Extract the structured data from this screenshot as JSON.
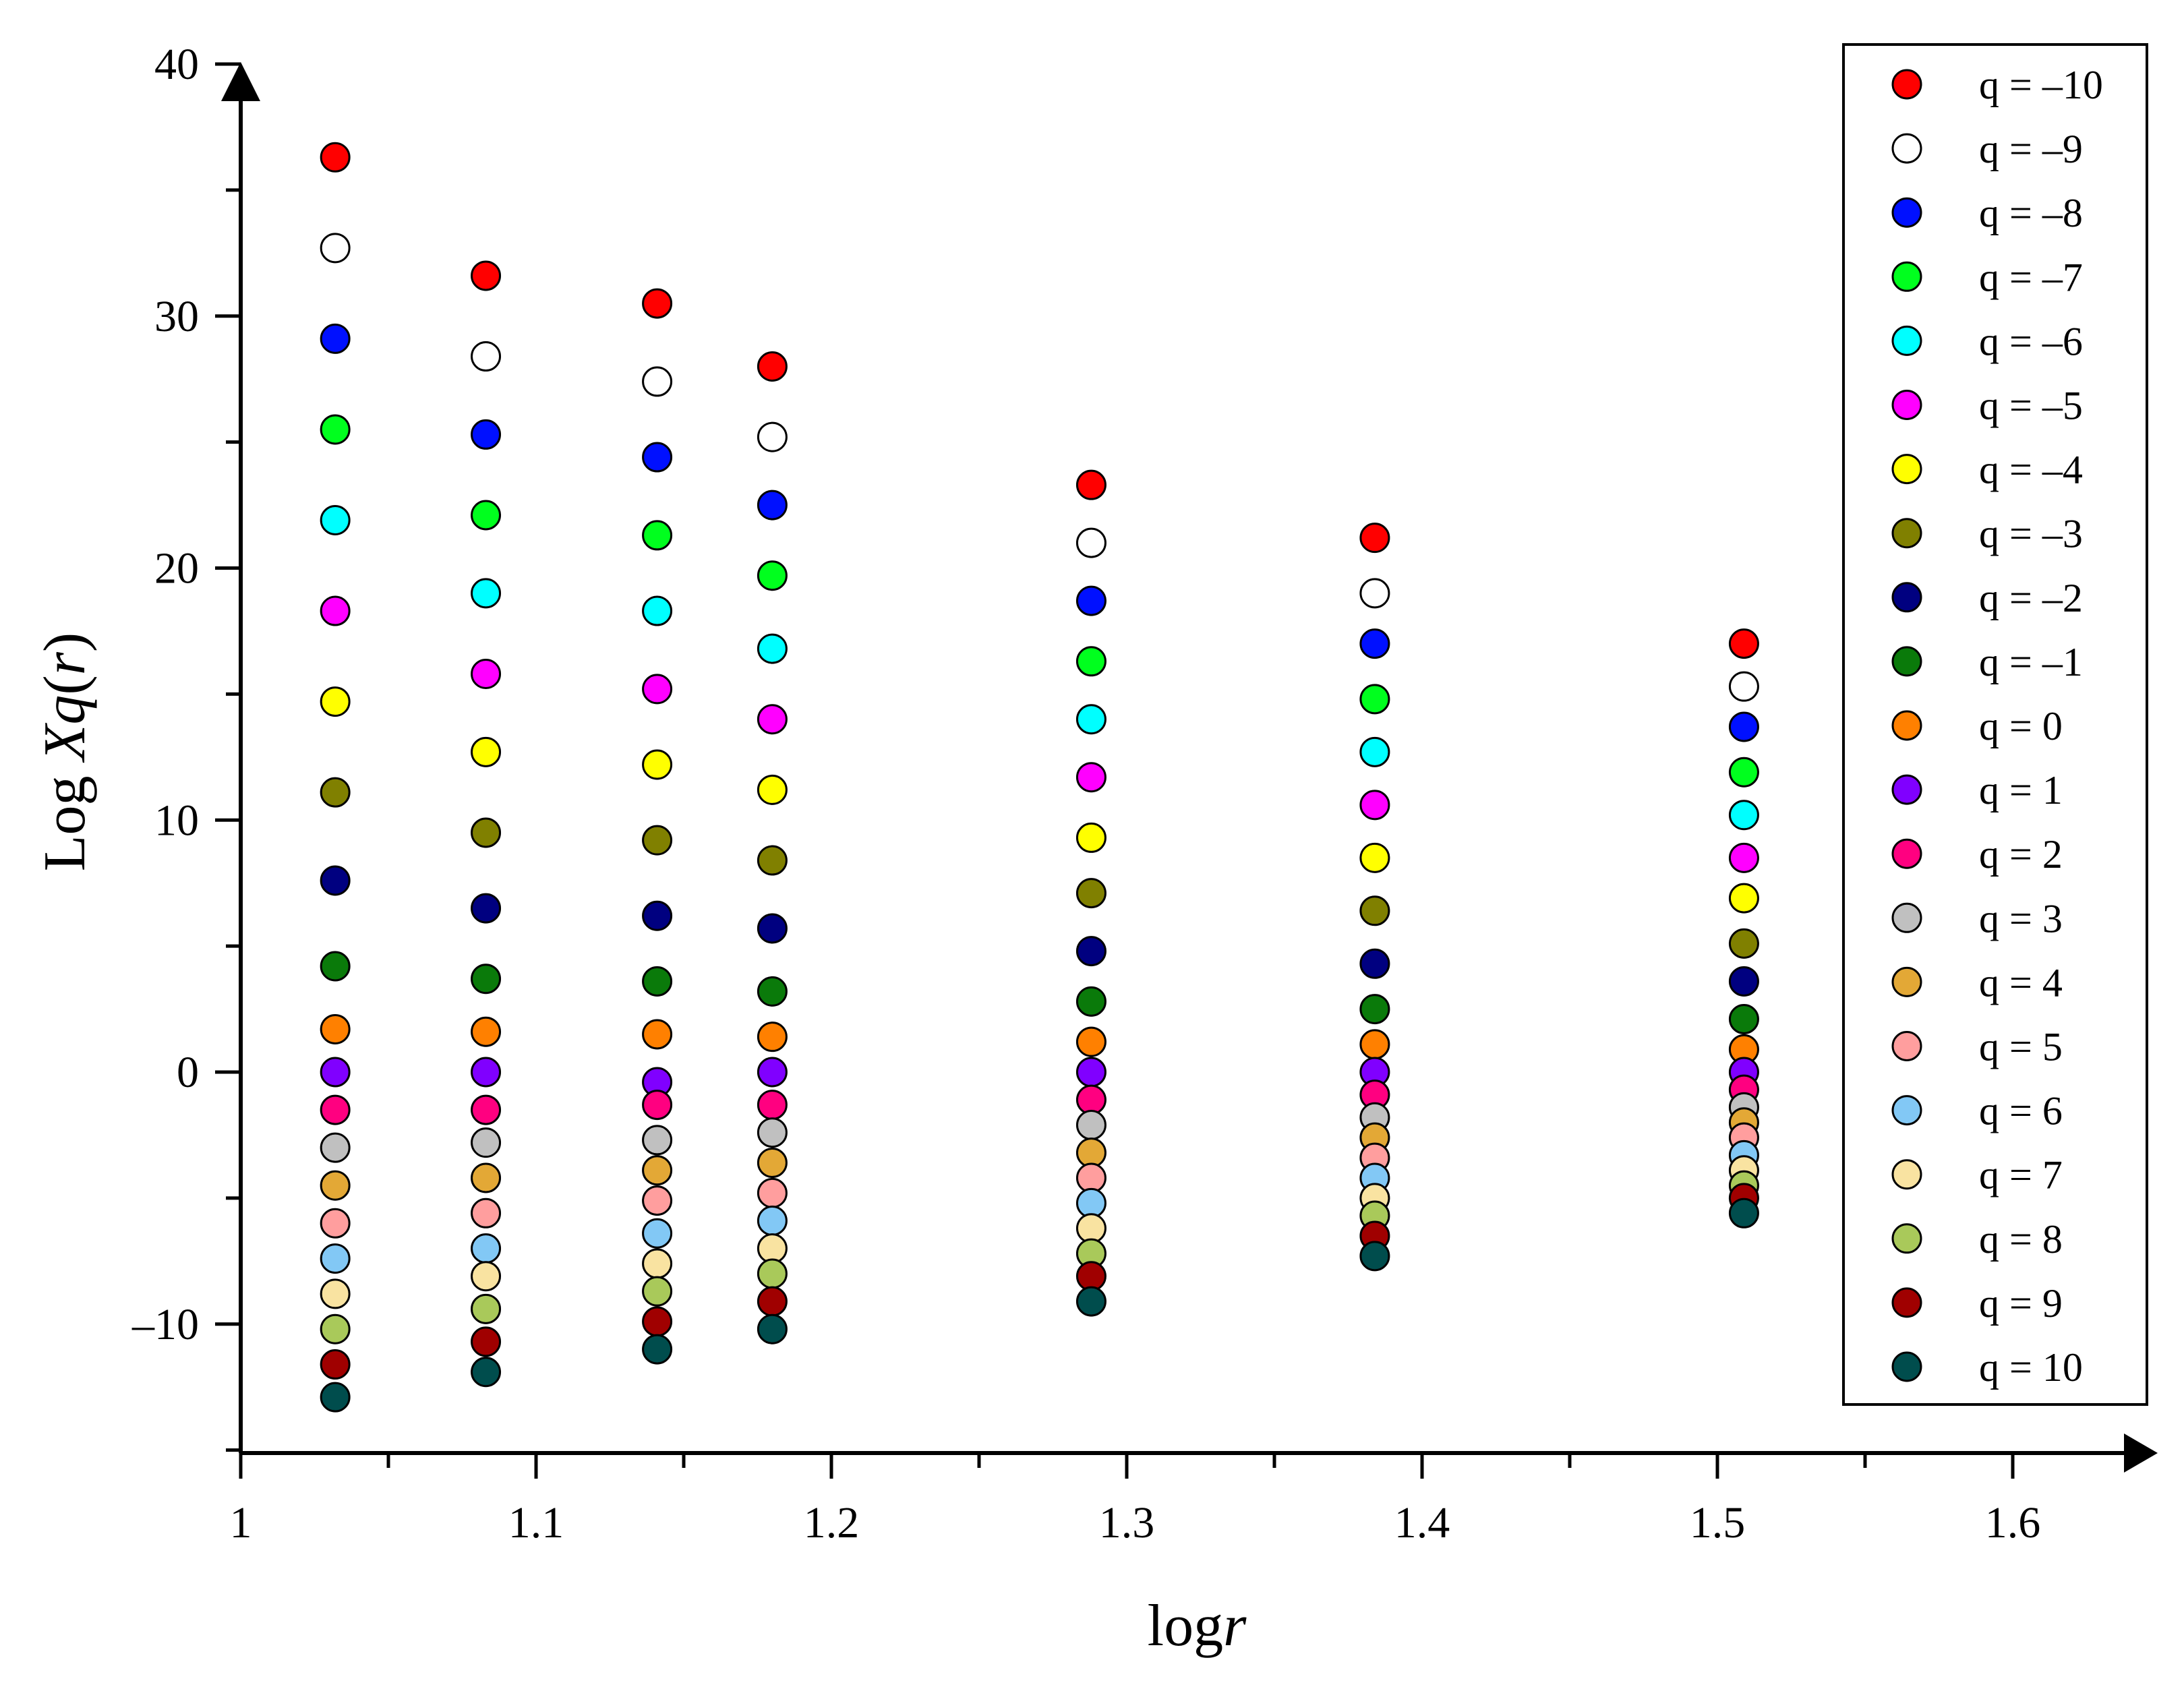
{
  "chart_data": {
    "type": "scatter",
    "title": "",
    "xlabel": {
      "plain": "log",
      "italic": "r"
    },
    "ylabel": {
      "plain1": "Log ",
      "italic1": "Xq",
      "plain2": "(",
      "italic2": "r",
      "plain3": ")"
    },
    "xlim": [
      1.0,
      1.65
    ],
    "ylim": [
      -15,
      40
    ],
    "x_ticks": [
      1.0,
      1.1,
      1.2,
      1.3,
      1.4,
      1.5,
      1.6
    ],
    "x_tick_labels": [
      "1",
      "1.1",
      "1.2",
      "1.3",
      "1.4",
      "1.5",
      "1.6"
    ],
    "y_ticks": [
      -10,
      0,
      10,
      20,
      30,
      40
    ],
    "y_tick_labels": [
      "–10",
      "0",
      "10",
      "20",
      "30",
      "40"
    ],
    "legend_position": "top-right",
    "x": [
      1.032,
      1.083,
      1.141,
      1.18,
      1.288,
      1.384,
      1.509
    ],
    "series": [
      {
        "name": "q = –10",
        "color": "#ff0000",
        "values": [
          36.3,
          31.6,
          30.5,
          28.0,
          23.3,
          21.2,
          17.0
        ]
      },
      {
        "name": "q = –9",
        "color": "#ffffff",
        "values": [
          32.7,
          28.4,
          27.4,
          25.2,
          21.0,
          19.0,
          15.3
        ]
      },
      {
        "name": "q = –8",
        "color": "#0010ff",
        "values": [
          29.1,
          25.3,
          24.4,
          22.5,
          18.7,
          17.0,
          13.7
        ]
      },
      {
        "name": "q = –7",
        "color": "#00ff1e",
        "values": [
          25.5,
          22.1,
          21.3,
          19.7,
          16.3,
          14.8,
          11.9
        ]
      },
      {
        "name": "q = –6",
        "color": "#00ffff",
        "values": [
          21.9,
          19.0,
          18.3,
          16.8,
          14.0,
          12.7,
          10.2
        ]
      },
      {
        "name": "q = –5",
        "color": "#ff00ff",
        "values": [
          18.3,
          15.8,
          15.2,
          14.0,
          11.7,
          10.6,
          8.5
        ]
      },
      {
        "name": "q = –4",
        "color": "#ffff00",
        "values": [
          14.7,
          12.7,
          12.2,
          11.2,
          9.3,
          8.5,
          6.9
        ]
      },
      {
        "name": "q = –3",
        "color": "#808000",
        "values": [
          11.1,
          9.5,
          9.2,
          8.4,
          7.1,
          6.4,
          5.1
        ]
      },
      {
        "name": "q = –2",
        "color": "#000080",
        "values": [
          7.6,
          6.5,
          6.2,
          5.7,
          4.8,
          4.3,
          3.6
        ]
      },
      {
        "name": "q = –1",
        "color": "#0a7a0a",
        "values": [
          4.2,
          3.7,
          3.6,
          3.2,
          2.8,
          2.5,
          2.1
        ]
      },
      {
        "name": "q = 0",
        "color": "#ff8000",
        "values": [
          1.7,
          1.6,
          1.5,
          1.4,
          1.2,
          1.1,
          0.9
        ]
      },
      {
        "name": "q = 1",
        "color": "#8000ff",
        "values": [
          0.0,
          0.0,
          -0.4,
          0.0,
          0.0,
          0.0,
          0.0
        ]
      },
      {
        "name": "q = 2",
        "color": "#ff0080",
        "values": [
          -1.5,
          -1.5,
          -1.3,
          -1.3,
          -1.1,
          -0.9,
          -0.7
        ]
      },
      {
        "name": "q = 3",
        "color": "#c0c0c0",
        "values": [
          -3.0,
          -2.8,
          -2.7,
          -2.4,
          -2.1,
          -1.8,
          -1.4
        ]
      },
      {
        "name": "q = 4",
        "color": "#e3a836",
        "values": [
          -4.5,
          -4.2,
          -3.9,
          -3.6,
          -3.2,
          -2.6,
          -2.0
        ]
      },
      {
        "name": "q = 5",
        "color": "#ff9e9e",
        "values": [
          -6.0,
          -5.6,
          -5.1,
          -4.8,
          -4.2,
          -3.4,
          -2.6
        ]
      },
      {
        "name": "q = 6",
        "color": "#82c8f5",
        "values": [
          -7.4,
          -7.0,
          -6.4,
          -5.9,
          -5.2,
          -4.2,
          -3.3
        ]
      },
      {
        "name": "q = 7",
        "color": "#f9e3a1",
        "values": [
          -8.8,
          -8.1,
          -7.6,
          -7.0,
          -6.2,
          -5.0,
          -3.9
        ]
      },
      {
        "name": "q = 8",
        "color": "#a9c95a",
        "values": [
          -10.2,
          -9.4,
          -8.7,
          -8.0,
          -7.2,
          -5.7,
          -4.5
        ]
      },
      {
        "name": "q = 9",
        "color": "#a00000",
        "values": [
          -11.6,
          -10.7,
          -9.9,
          -9.1,
          -8.1,
          -6.5,
          -5.0
        ]
      },
      {
        "name": "q = 10",
        "color": "#004d4d",
        "values": [
          -12.9,
          -11.9,
          -11.0,
          -10.2,
          -9.1,
          -7.3,
          -5.6
        ]
      }
    ]
  }
}
